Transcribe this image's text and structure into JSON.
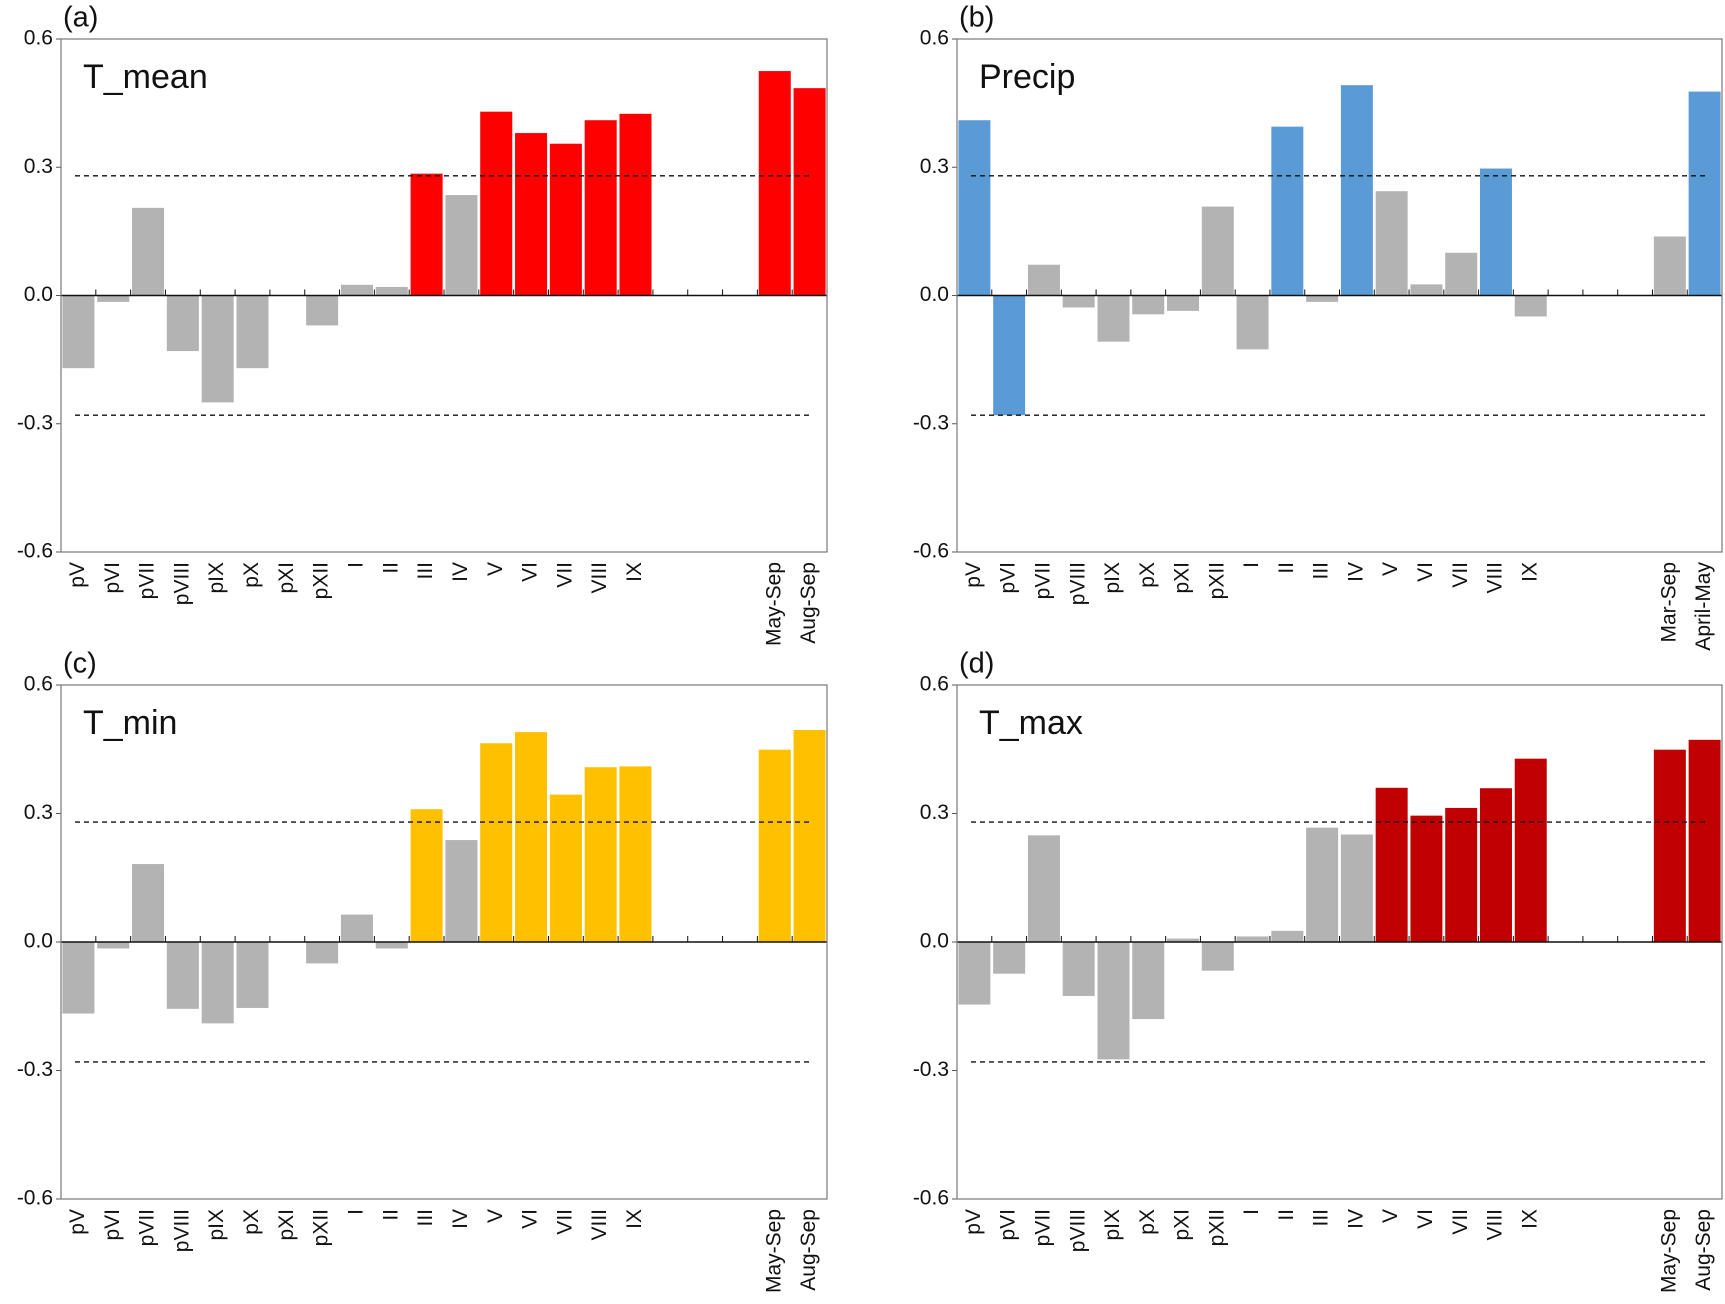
{
  "chart_data": [
    {
      "type": "bar",
      "panel": "(a)",
      "title": "T_mean",
      "categories": [
        "pV",
        "pVI",
        "pVII",
        "pVIII",
        "pIX",
        "pX",
        "pXI",
        "pXII",
        "I",
        "II",
        "III",
        "IV",
        "V",
        "VI",
        "VII",
        "VIII",
        "IX",
        null,
        null,
        null,
        "May-Sep",
        "Aug-Sep"
      ],
      "values": [
        -0.17,
        -0.015,
        0.205,
        -0.13,
        -0.25,
        -0.17,
        0,
        -0.07,
        0.025,
        0.02,
        0.285,
        0.235,
        0.43,
        0.38,
        0.355,
        0.41,
        0.425,
        null,
        null,
        null,
        0.525,
        0.485
      ],
      "colors": [
        "#b3b3b3",
        "#b3b3b3",
        "#b3b3b3",
        "#b3b3b3",
        "#b3b3b3",
        "#b3b3b3",
        "#b3b3b3",
        "#b3b3b3",
        "#b3b3b3",
        "#b3b3b3",
        "#ff0000",
        "#b3b3b3",
        "#ff0000",
        "#ff0000",
        "#ff0000",
        "#ff0000",
        "#ff0000",
        null,
        null,
        null,
        "#ff0000",
        "#ff0000"
      ],
      "ylim": [
        -0.6,
        0.6
      ],
      "yticks": [
        -0.6,
        -0.3,
        {
          "value": 0,
          "label": "0.0"
        },
        0.3,
        0.6
      ],
      "reference_lines": [
        0.28,
        -0.28
      ]
    },
    {
      "type": "bar",
      "panel": "(b)",
      "title": "Precip",
      "categories": [
        "pV",
        "pVI",
        "pVII",
        "pVIII",
        "pIX",
        "pX",
        "pXI",
        "pXII",
        "I",
        "II",
        "III",
        "IV",
        "V",
        "VI",
        "VII",
        "VIII",
        "IX",
        null,
        null,
        null,
        "Mar-Sep",
        "April-May"
      ],
      "values": [
        0.41,
        -0.28,
        0.072,
        -0.028,
        -0.108,
        -0.044,
        -0.036,
        0.208,
        -0.126,
        0.395,
        -0.015,
        0.492,
        0.244,
        0.026,
        0.1,
        0.297,
        -0.049,
        null,
        null,
        null,
        0.138,
        0.477
      ],
      "colors": [
        "#5b9bd5",
        "#5b9bd5",
        "#b3b3b3",
        "#b3b3b3",
        "#b3b3b3",
        "#b3b3b3",
        "#b3b3b3",
        "#b3b3b3",
        "#b3b3b3",
        "#5b9bd5",
        "#b3b3b3",
        "#5b9bd5",
        "#b3b3b3",
        "#b3b3b3",
        "#b3b3b3",
        "#5b9bd5",
        "#b3b3b3",
        null,
        null,
        null,
        "#b3b3b3",
        "#5b9bd5"
      ],
      "ylim": [
        -0.6,
        0.6
      ],
      "yticks": [
        -0.6,
        -0.3,
        {
          "value": 0,
          "label": "0.0"
        },
        0.3,
        0.6
      ],
      "reference_lines": [
        0.28,
        -0.28
      ]
    },
    {
      "type": "bar",
      "panel": "(c)",
      "title": "T_min",
      "categories": [
        "pV",
        "pVI",
        "pVII",
        "pVIII",
        "pIX",
        "pX",
        "pXI",
        "pXII",
        "I",
        "II",
        "III",
        "IV",
        "V",
        "VI",
        "VII",
        "VIII",
        "IX",
        null,
        null,
        null,
        "May-Sep",
        "Aug-Sep"
      ],
      "values": [
        -0.167,
        -0.015,
        0.182,
        -0.156,
        -0.19,
        -0.154,
        0,
        -0.05,
        0.064,
        -0.015,
        0.31,
        0.238,
        0.464,
        0.49,
        0.344,
        0.408,
        0.41,
        null,
        null,
        null,
        0.449,
        0.495
      ],
      "colors": [
        "#b3b3b3",
        "#b3b3b3",
        "#b3b3b3",
        "#b3b3b3",
        "#b3b3b3",
        "#b3b3b3",
        "#b3b3b3",
        "#b3b3b3",
        "#b3b3b3",
        "#b3b3b3",
        "#ffc000",
        "#b3b3b3",
        "#ffc000",
        "#ffc000",
        "#ffc000",
        "#ffc000",
        "#ffc000",
        null,
        null,
        null,
        "#ffc000",
        "#ffc000"
      ],
      "ylim": [
        -0.6,
        0.6
      ],
      "yticks": [
        -0.6,
        -0.3,
        {
          "value": 0,
          "label": "0.0"
        },
        0.3,
        0.6
      ],
      "reference_lines": [
        0.28,
        -0.28
      ]
    },
    {
      "type": "bar",
      "panel": "(d)",
      "title": "T_max",
      "categories": [
        "pV",
        "pVI",
        "pVII",
        "pVIII",
        "pIX",
        "pX",
        "pXI",
        "pXII",
        "I",
        "II",
        "III",
        "IV",
        "V",
        "VI",
        "VII",
        "VIII",
        "IX",
        null,
        null,
        null,
        "May-Sep",
        "Aug-Sep"
      ],
      "values": [
        -0.146,
        -0.074,
        0.249,
        -0.126,
        -0.274,
        -0.18,
        0.008,
        -0.067,
        0.013,
        0.026,
        0.267,
        0.251,
        0.36,
        0.295,
        0.313,
        0.359,
        0.428,
        null,
        null,
        null,
        0.449,
        0.472
      ],
      "colors": [
        "#b3b3b3",
        "#b3b3b3",
        "#b3b3b3",
        "#b3b3b3",
        "#b3b3b3",
        "#b3b3b3",
        "#b3b3b3",
        "#b3b3b3",
        "#b3b3b3",
        "#b3b3b3",
        "#b3b3b3",
        "#b3b3b3",
        "#c00000",
        "#c00000",
        "#c00000",
        "#c00000",
        "#c00000",
        null,
        null,
        null,
        "#c00000",
        "#c00000"
      ],
      "ylim": [
        -0.6,
        0.6
      ],
      "yticks": [
        -0.6,
        -0.3,
        {
          "value": 0,
          "label": "0.0"
        },
        0.3,
        0.6
      ],
      "reference_lines": [
        0.28,
        -0.28
      ]
    }
  ]
}
